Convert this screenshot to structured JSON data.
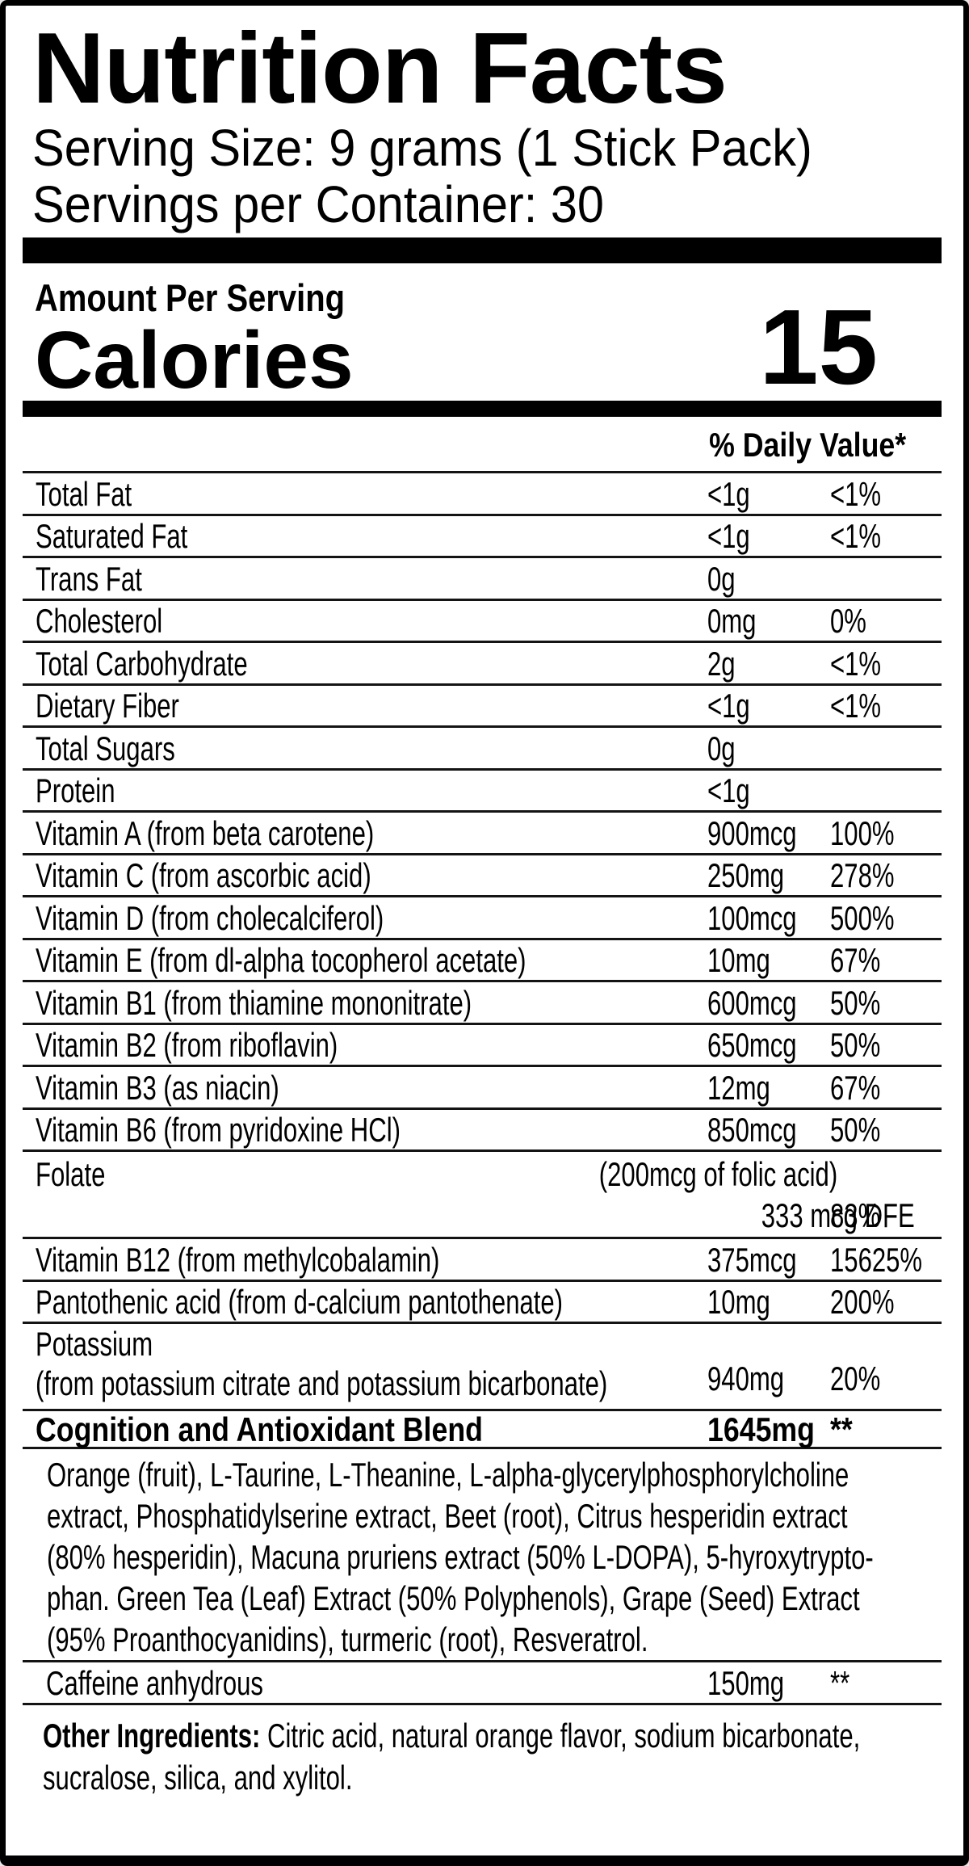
{
  "header": {
    "title": "Nutrition Facts",
    "serving_size": "Serving Size: 9 grams (1 Stick Pack)",
    "servings_per_container": "Servings per Container: 30"
  },
  "calories": {
    "amount_per_serving_label": "Amount Per Serving",
    "label": "Calories",
    "value": "15"
  },
  "daily_value_header": "% Daily Value*",
  "nutrients": [
    {
      "name": "Total Fat",
      "amount": "<1g",
      "dv": "<1%"
    },
    {
      "name": "Saturated Fat",
      "amount": "<1g",
      "dv": "<1%"
    },
    {
      "name": "Trans Fat",
      "amount": "0g",
      "dv": ""
    },
    {
      "name": "Cholesterol",
      "amount": "0mg",
      "dv": "0%"
    },
    {
      "name": "Total Carbohydrate",
      "amount": "2g",
      "dv": "<1%"
    },
    {
      "name": "Dietary Fiber",
      "amount": "<1g",
      "dv": "<1%"
    },
    {
      "name": "Total Sugars",
      "amount": "0g",
      "dv": ""
    },
    {
      "name": "Protein",
      "amount": "<1g",
      "dv": ""
    },
    {
      "name": "Vitamin A (from beta carotene)",
      "amount": "900mcg",
      "dv": "100%"
    },
    {
      "name": "Vitamin C (from ascorbic acid)",
      "amount": "250mg",
      "dv": "278%"
    },
    {
      "name": "Vitamin D (from cholecalciferol)",
      "amount": "100mcg",
      "dv": "500%"
    },
    {
      "name": "Vitamin E (from dl-alpha tocopherol acetate)",
      "amount": "10mg",
      "dv": "67%"
    },
    {
      "name": "Vitamin B1 (from thiamine mononitrate)",
      "amount": "600mcg",
      "dv": "50%"
    },
    {
      "name": "Vitamin B2 (from riboflavin)",
      "amount": "650mcg",
      "dv": "50%"
    },
    {
      "name": "Vitamin B3 (as niacin)",
      "amount": "12mg",
      "dv": "67%"
    },
    {
      "name": "Vitamin B6 (from pyridoxine HCl)",
      "amount": "850mcg",
      "dv": "50%"
    }
  ],
  "folate": {
    "name": "Folate",
    "note": "(200mcg of folic acid)",
    "amount": "333 mcg DFE",
    "dv": "83%"
  },
  "nutrients_b": [
    {
      "name": "Vitamin B12 (from methylcobalamin)",
      "amount": "375mcg",
      "dv": "15625%"
    },
    {
      "name": "Pantothenic acid (from d-calcium pantothenate)",
      "amount": "10mg",
      "dv": "200%"
    }
  ],
  "potassium": {
    "name": "Potassium",
    "source": "(from potassium citrate and potassium bicarbonate)",
    "amount": "940mg",
    "dv": "20%"
  },
  "blend": {
    "name": "Cognition and Antioxidant Blend",
    "amount": "1645mg",
    "dv": "**",
    "lines": [
      "Orange (fruit), L-Taurine, L-Theanine, L-alpha-glycerylphosphorylcholine",
      "extract, Phosphatidylserine extract, Beet (root), Citrus hesperidin extract",
      "(80% hesperidin), Macuna pruriens extract (50% L-DOPA), 5-hyroxytrypto-",
      "phan. Green Tea (Leaf) Extract (50% Polyphenols), Grape (Seed) Extract",
      "(95% Proanthocyanidins), turmeric (root), Resveratrol."
    ]
  },
  "caffeine": {
    "name": "Caffeine anhydrous",
    "amount": "150mg",
    "dv": "**"
  },
  "other_ingredients": {
    "label": "Other Ingredients:",
    "line1_rest": " Citric acid, natural orange flavor, sodium bicarbonate,",
    "line2": "sucralose, silica, and xylitol."
  },
  "colors": {
    "ink": "#000000",
    "paper": "#ffffff"
  }
}
